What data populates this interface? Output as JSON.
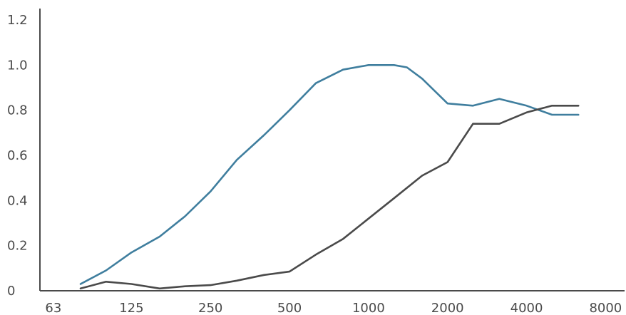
{
  "chart_data": {
    "type": "line",
    "title": "",
    "xlabel": "",
    "ylabel": "",
    "x_scale": "log",
    "grid": false,
    "legend": "none",
    "xlim": [
      56,
      9450
    ],
    "ylim": [
      0,
      1.2
    ],
    "x_ticks": [
      63,
      125,
      250,
      500,
      1000,
      2000,
      4000,
      8000
    ],
    "x_tick_labels": [
      "63",
      "125",
      "250",
      "500",
      "1000",
      "2000",
      "4000",
      "8000"
    ],
    "y_ticks": [
      0,
      0.2,
      0.4,
      0.6,
      0.8,
      1.0,
      1.2
    ],
    "y_tick_labels": [
      "0",
      "0.2",
      "0.4",
      "0.6",
      "0.8",
      "1.0",
      "1.2"
    ],
    "x": [
      80,
      100,
      125,
      160,
      200,
      250,
      315,
      400,
      500,
      630,
      800,
      1000,
      1250,
      1600,
      2000,
      2500,
      3150,
      4000,
      5000,
      6300
    ],
    "series": [
      {
        "color": "#3f7e9e",
        "x": [
          80,
          100,
          125,
          160,
          200,
          250,
          315,
          400,
          500,
          630,
          800,
          1000,
          1250,
          1400,
          1600,
          2000,
          2500,
          3150,
          4000,
          5000,
          6300
        ],
        "values": [
          0.03,
          0.09,
          0.17,
          0.24,
          0.33,
          0.44,
          0.58,
          0.69,
          0.8,
          0.92,
          0.98,
          1.0,
          1.0,
          0.99,
          0.94,
          0.83,
          0.82,
          0.85,
          0.82,
          0.78,
          0.78
        ]
      },
      {
        "color": "#4a4a4a",
        "x": [
          80,
          100,
          125,
          160,
          200,
          250,
          315,
          400,
          500,
          630,
          800,
          1000,
          1250,
          1600,
          2000,
          2500,
          3150,
          4000,
          5000,
          6300
        ],
        "values": [
          0.01,
          0.04,
          0.03,
          0.01,
          0.02,
          0.025,
          0.045,
          0.07,
          0.085,
          0.16,
          0.23,
          0.32,
          0.41,
          0.51,
          0.57,
          0.74,
          0.74,
          0.79,
          0.82,
          0.82
        ]
      }
    ]
  }
}
